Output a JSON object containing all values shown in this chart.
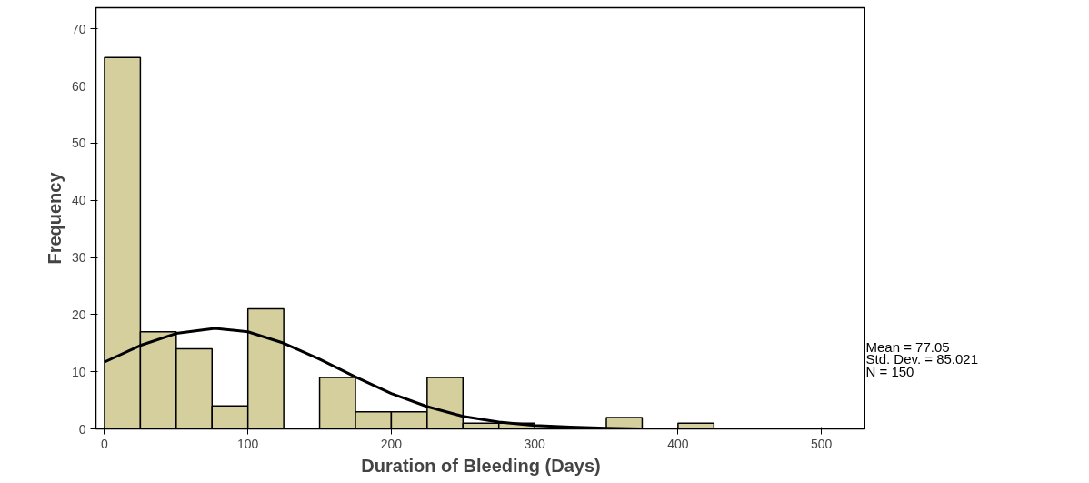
{
  "chart_data": {
    "type": "histogram",
    "xlabel": "Duration of Bleeding (Days)",
    "ylabel": "Frequency",
    "bins": [
      0,
      25,
      50,
      75,
      100,
      125,
      150,
      175,
      200,
      225,
      250,
      275,
      300,
      325,
      350,
      375,
      400,
      425
    ],
    "values": [
      65,
      17,
      14,
      4,
      21,
      0,
      9,
      3,
      3,
      9,
      1,
      1,
      0,
      0,
      2,
      0,
      1
    ],
    "color": "#d5cf9e",
    "series": [
      {
        "type": "line",
        "color": "#000000",
        "x": [
          0,
          25,
          50,
          77,
          100,
          125,
          150,
          175,
          200,
          225,
          250,
          275,
          300,
          325,
          350,
          375,
          400
        ],
        "values": [
          11.7,
          14.6,
          16.7,
          17.6,
          17.0,
          15.0,
          12.2,
          9.1,
          6.2,
          3.9,
          2.2,
          1.2,
          0.6,
          0.3,
          0.1,
          0.0,
          0.0
        ]
      }
    ],
    "xlim": [
      -6,
      531
    ],
    "ylim": [
      0,
      73.7
    ],
    "xticks": [
      0,
      100,
      200,
      300,
      400,
      500
    ],
    "yticks": [
      0,
      10,
      20,
      30,
      40,
      50,
      60,
      70
    ],
    "grid": false,
    "legend": false,
    "annotations": [
      "Mean = 77.05",
      "Std. Dev. = 85.021",
      "N = 150"
    ]
  }
}
